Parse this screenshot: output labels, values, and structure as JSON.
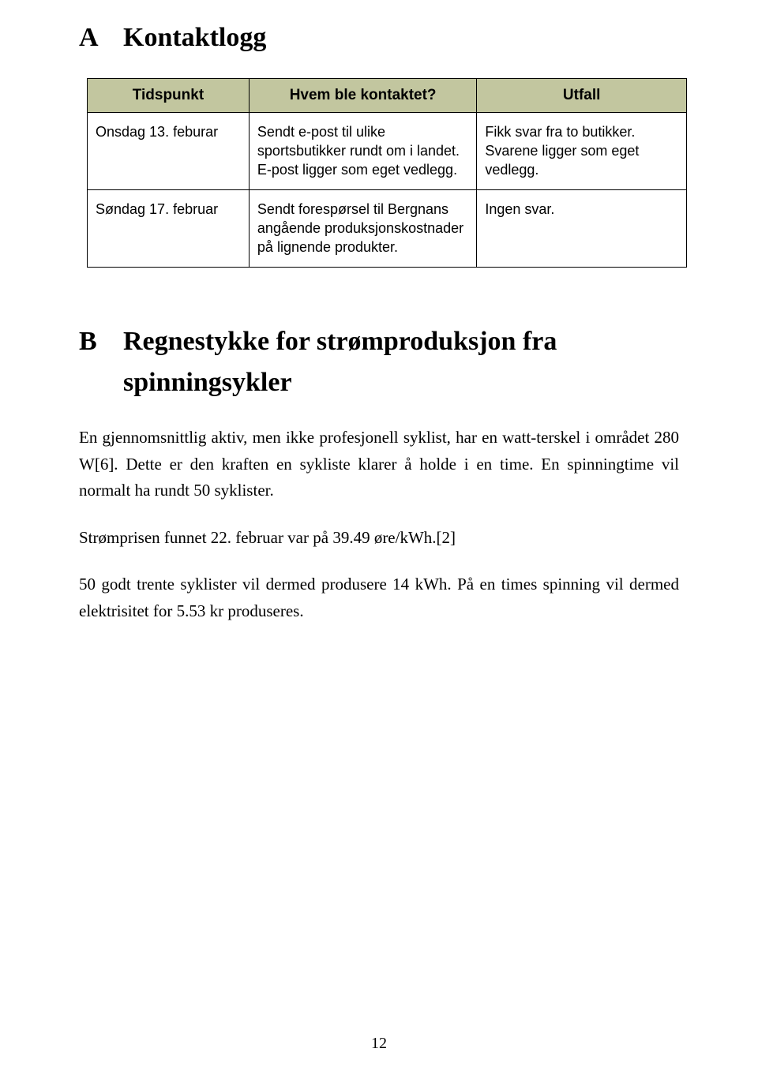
{
  "sectionA": {
    "letter": "A",
    "title": "Kontaktlogg"
  },
  "table": {
    "header_bg": "#c2c69f",
    "border_color": "#000000",
    "columns": [
      "Tidspunkt",
      "Hvem ble kontaktet?",
      "Utfall"
    ],
    "rows": [
      {
        "time": "Onsdag 13. feburar",
        "who": "Sendt e-post til ulike sportsbutikker rundt om i landet. E-post ligger som eget vedlegg.",
        "outcome": "Fikk svar fra to butikker. Svarene ligger som eget vedlegg."
      },
      {
        "time": "Søndag 17. februar",
        "who": "Sendt forespørsel til Bergnans angående produksjonskostnader på lignende produkter.",
        "outcome": "Ingen svar."
      }
    ]
  },
  "sectionB": {
    "letter": "B",
    "title": "Regnestykke for strømproduksjon fra spinningsykler"
  },
  "paragraphs": {
    "p1": "En gjennomsnittlig aktiv, men ikke profesjonell syklist, har en watt-terskel i området 280 W[6]. Dette er den kraften en sykliste klarer å holde i en time. En spinningtime vil normalt ha rundt 50 syklister.",
    "p2": "Strømprisen funnet 22. februar var på 39.49 øre/kWh.[2]",
    "p3": "50 godt trente syklister vil dermed produsere 14 kWh. På en times spinning vil dermed elektrisitet for 5.53 kr produseres."
  },
  "page_number": "12"
}
